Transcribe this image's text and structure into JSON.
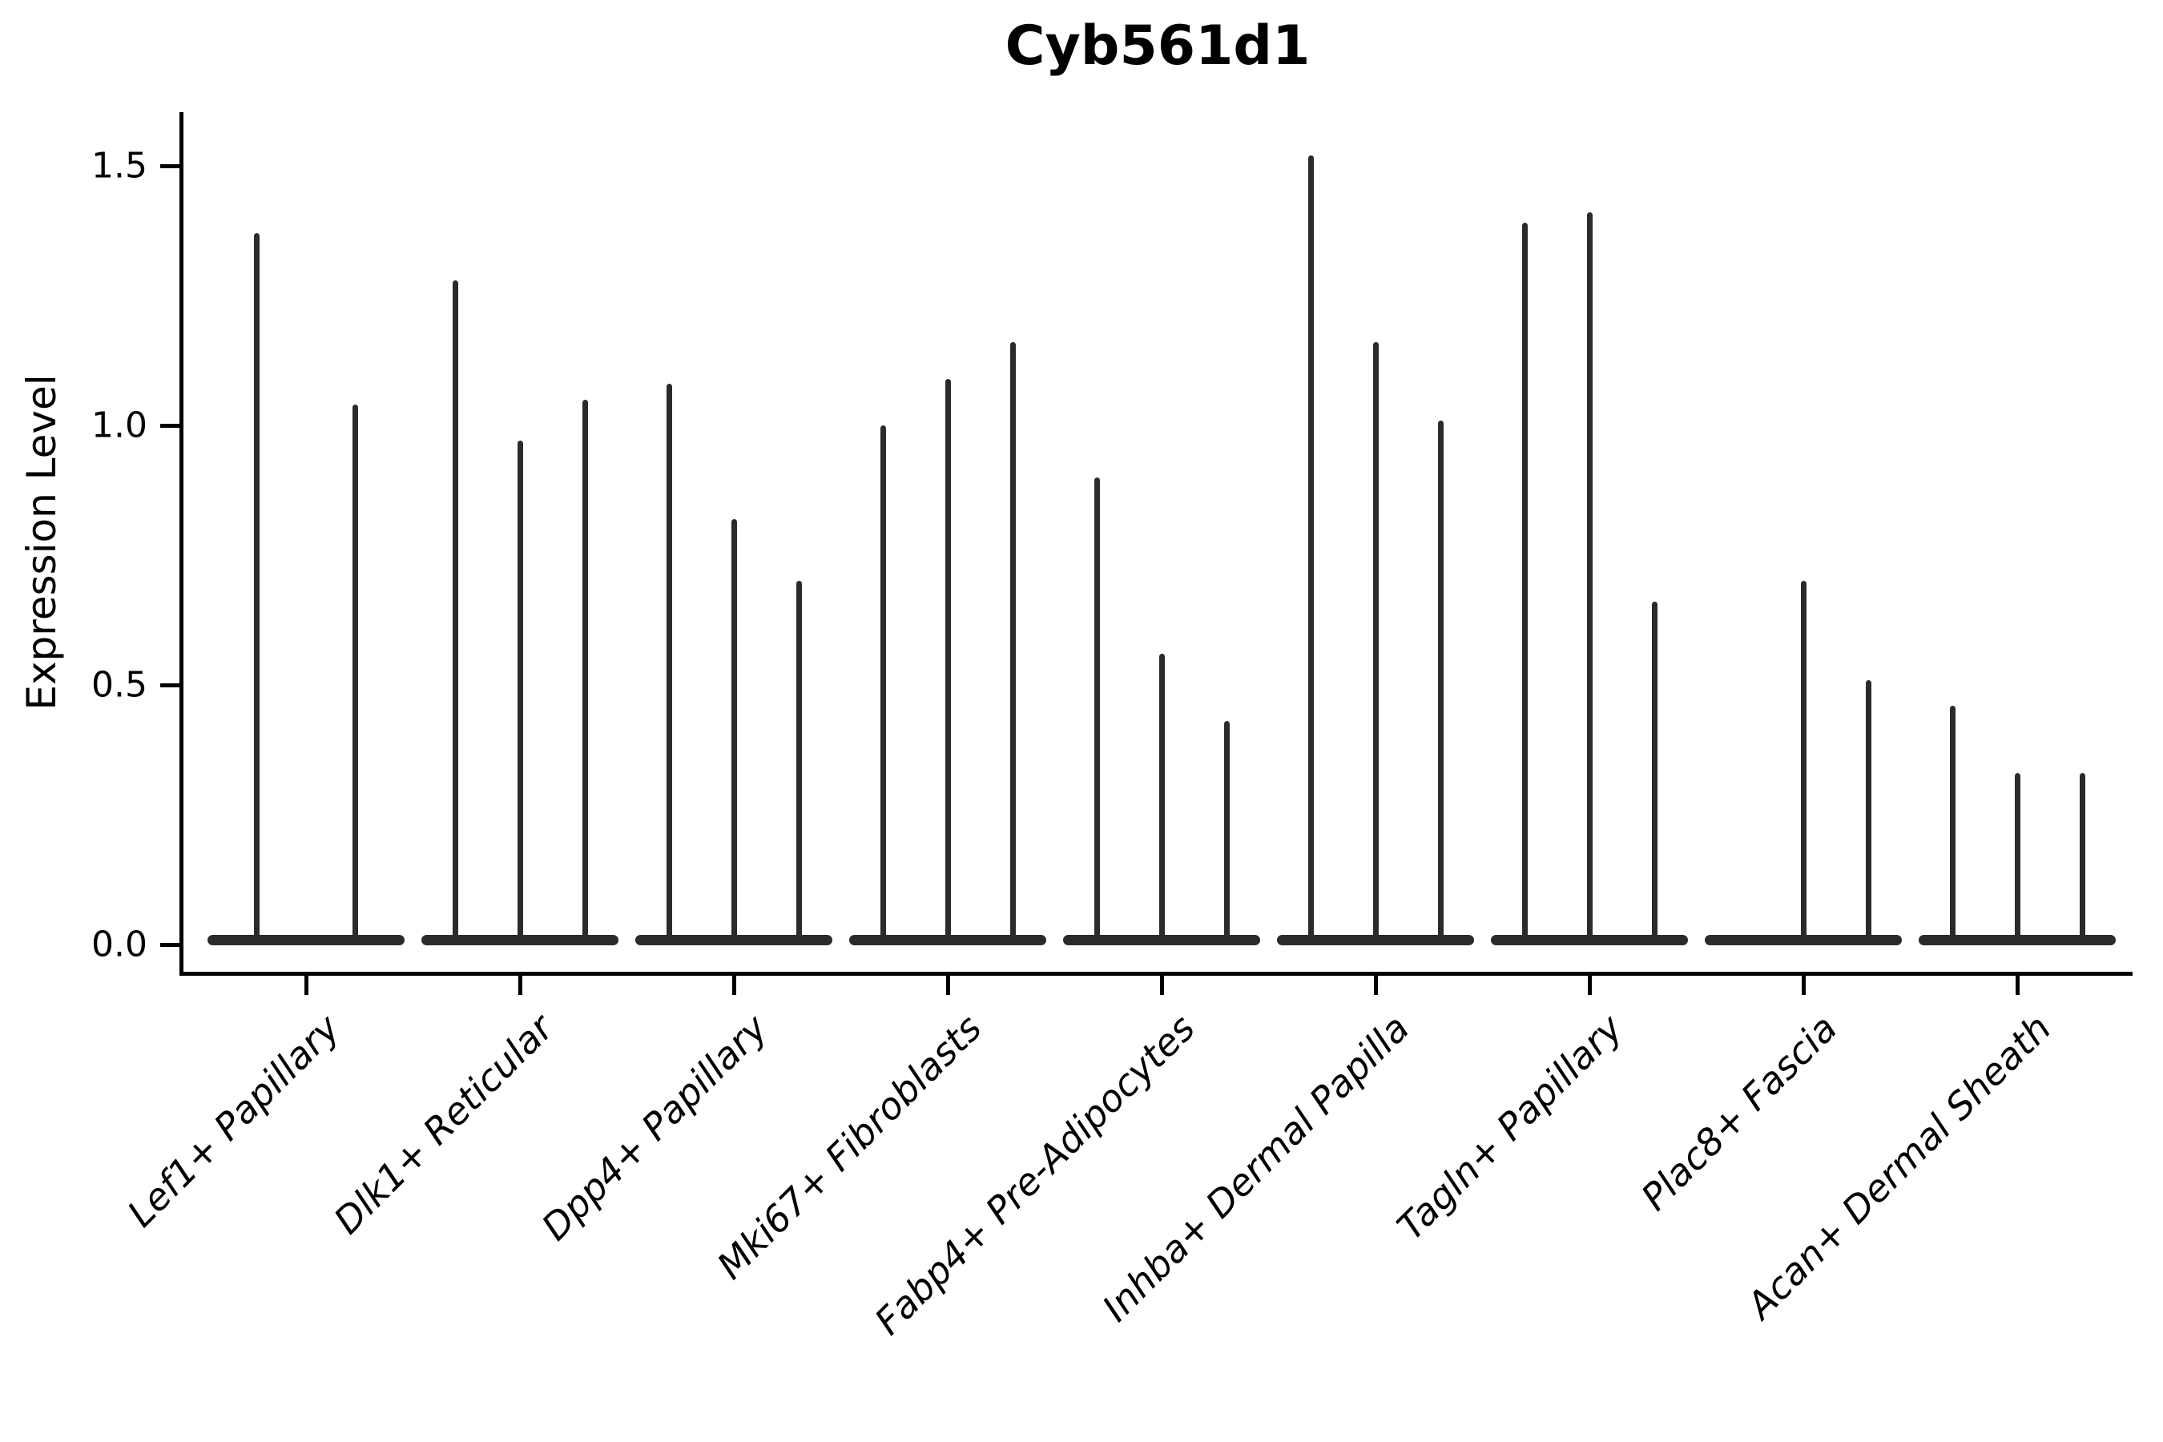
{
  "chart_data": {
    "type": "violin",
    "title": "Cyb561d1",
    "ylabel": "Expression Level",
    "xlabel": "",
    "y_tick_labels": [
      "0.0",
      "0.5",
      "1.0",
      "1.5"
    ],
    "ylim": [
      0,
      1.55
    ],
    "grid": false,
    "legend": "none",
    "line_color": "#2b2b2b",
    "axis_color": "#000000",
    "background_color": "#ffffff",
    "description": "Violin plot of gene expression; each cell-type group contains thin spike-like violins (one per sample) rising from a flat base at 0 to the sample maximum. A null maximum means the violin is flat at zero; groups may have 2 or 3 violins.",
    "groups": [
      {
        "label": "Lef1+ Papillary",
        "violin_maxima": [
          1.37,
          1.04
        ]
      },
      {
        "label": "Dlk1+ Reticular",
        "violin_maxima": [
          1.28,
          0.97,
          1.05
        ]
      },
      {
        "label": "Dpp4+ Papillary",
        "violin_maxima": [
          1.08,
          0.82,
          0.7
        ]
      },
      {
        "label": "Mki67+ Fibroblasts",
        "violin_maxima": [
          1.0,
          1.09,
          1.16
        ]
      },
      {
        "label": "Fabp4+ Pre-Adipocytes",
        "violin_maxima": [
          0.9,
          0.56,
          0.43
        ]
      },
      {
        "label": "Inhba+ Dermal Papilla",
        "violin_maxima": [
          1.52,
          1.16,
          1.01
        ]
      },
      {
        "label": "Tagln+ Papillary",
        "violin_maxima": [
          1.39,
          1.41,
          0.66
        ]
      },
      {
        "label": "Plac8+ Fascia",
        "violin_maxima": [
          null,
          0.7,
          0.51
        ]
      },
      {
        "label": "Acan+ Dermal Sheath",
        "violin_maxima": [
          0.46,
          0.33,
          0.33
        ]
      }
    ]
  }
}
